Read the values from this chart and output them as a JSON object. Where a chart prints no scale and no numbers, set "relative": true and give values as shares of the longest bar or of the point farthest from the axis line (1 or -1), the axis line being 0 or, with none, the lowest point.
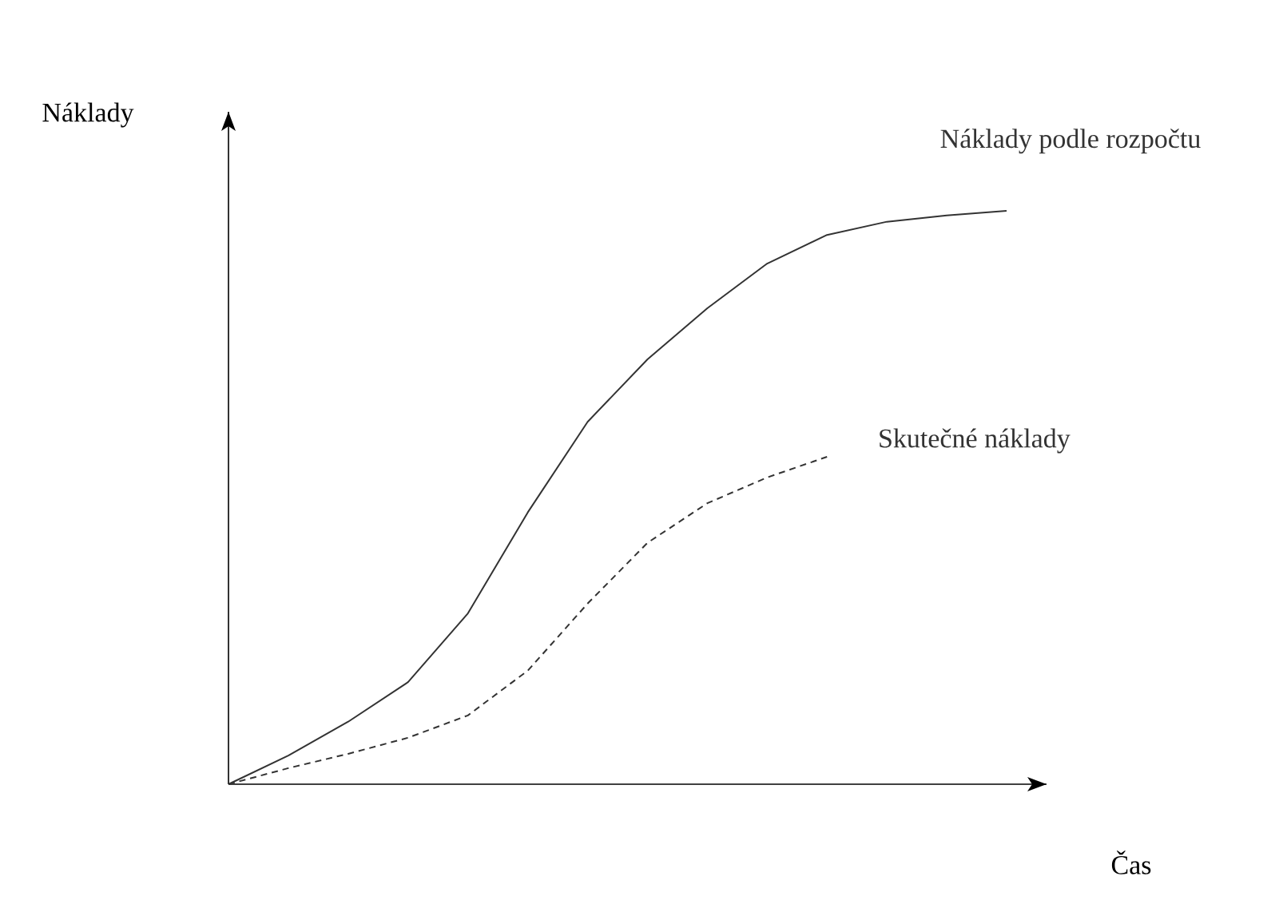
{
  "chart_data": {
    "type": "line",
    "relative": true,
    "ylabel": "Náklady",
    "xlabel": "Čas",
    "legend": false,
    "tick_labels": false,
    "marker": "none",
    "categories": [
      null,
      null,
      null,
      null,
      null,
      null,
      null,
      null,
      null,
      null,
      null,
      null,
      null,
      null
    ],
    "series": [
      {
        "name": "Náklady podle rozpočtu",
        "color": "#333333",
        "line_style": "solid",
        "values": [
          0,
          0.05,
          0.109,
          0.178,
          0.298,
          0.474,
          0.632,
          0.741,
          0.83,
          0.908,
          0.958,
          0.981,
          0.992,
          1
        ]
      },
      {
        "name": "Skutečné náklady",
        "color": "#333333",
        "line_style": "dashed",
        "values": [
          0,
          0.028,
          0.053,
          0.081,
          0.12,
          0.198,
          0.315,
          0.421,
          0.49,
          0.535,
          0.571,
          null,
          null,
          null
        ]
      }
    ]
  }
}
